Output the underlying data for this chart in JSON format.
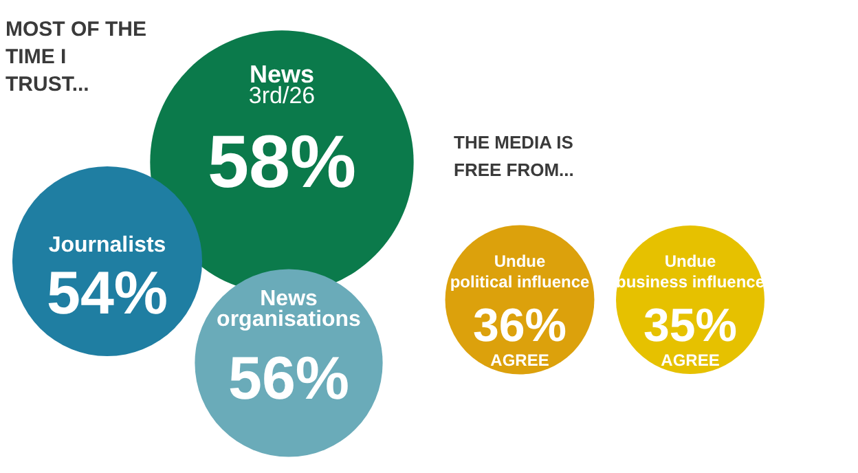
{
  "chart_data": {
    "type": "other",
    "categories": [
      "News",
      "Journalists",
      "News organisations",
      "Undue political influence",
      "Undue business influence"
    ],
    "values": [
      58,
      54,
      56,
      36,
      35
    ],
    "value_labels": [
      "58%",
      "54%",
      "56%",
      "36%",
      "35%"
    ],
    "colors": [
      "#0b7a4b",
      "#1f7ea2",
      "#6aabb9",
      "#dca10c",
      "#e6c100"
    ],
    "annotations": [
      "MOST OF THE TIME I TRUST...",
      "THE MEDIA IS FREE FROM...",
      {
        "text": "3rd/26",
        "x": "News"
      },
      {
        "text": "AGREE",
        "x": "Undue political influence"
      },
      {
        "text": "AGREE",
        "x": "Undue business influence"
      }
    ]
  }
}
